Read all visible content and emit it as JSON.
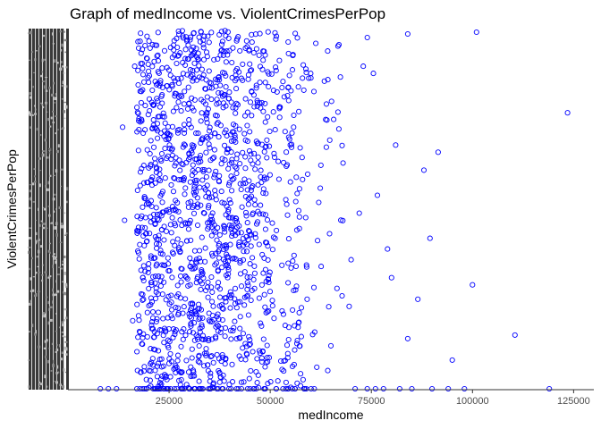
{
  "chart_data": {
    "type": "scatter",
    "title": "Graph of medIncome vs. ViolentCrimesPerPop",
    "xlabel": "medIncome",
    "ylabel": "ViolentCrimesPerPop",
    "xlim": [
      0,
      130000
    ],
    "x_ticks": [
      25000,
      50000,
      75000,
      100000,
      125000
    ],
    "x_tick_labels": [
      "25000",
      "50000",
      "75000",
      "100000",
      "125000"
    ],
    "y_axis_note": "Categorical y axis with hundreds of overlapping tick labels rendered as an illegible dark band; only '4' is individually readable.",
    "y_visible_tick_labels": [
      "4"
    ],
    "grid": false,
    "legend": "none",
    "marker": "open-circle",
    "point_color": "#0000ff",
    "axis_color": "#333333",
    "series": [
      {
        "values_note": "~1900 points; x concentrated 15000–50000, sparse tail to ~123500; y spread uniformly over the full categorical range (0–1 normalised).",
        "points": [
          [
            101000,
            0.995
          ],
          [
            84000,
            0.99
          ],
          [
            123500,
            0.77
          ],
          [
            110500,
            0.15
          ],
          [
            100000,
            0.29
          ],
          [
            91500,
            0.66
          ],
          [
            88000,
            0.61
          ],
          [
            81000,
            0.68
          ],
          [
            95000,
            0.08
          ],
          [
            89500,
            0.42
          ],
          [
            86500,
            0.25
          ],
          [
            84000,
            0.14
          ],
          [
            80000,
            0.31
          ],
          [
            79000,
            0.39
          ],
          [
            76500,
            0.54
          ],
          [
            75500,
            0.88
          ],
          [
            74000,
            0.98
          ],
          [
            73000,
            0.9
          ],
          [
            72000,
            0.49
          ],
          [
            70000,
            0.36
          ],
          [
            69500,
            0.23
          ],
          [
            68000,
            0.63
          ],
          [
            67000,
            0.96
          ],
          [
            66500,
            0.28
          ],
          [
            65000,
            0.12
          ],
          [
            64000,
            0.75
          ],
          [
            62000,
            0.52
          ],
          [
            61500,
            0.06
          ],
          [
            60000,
            0.88
          ],
          [
            59000,
            0.34
          ],
          [
            119000,
            0.0
          ],
          [
            98000,
            0.0
          ],
          [
            94000,
            0.0
          ],
          [
            90000,
            0.0
          ],
          [
            85000,
            0.0
          ],
          [
            82000,
            0.0
          ],
          [
            78000,
            0.0
          ],
          [
            76000,
            0.0
          ],
          [
            74000,
            0.0
          ],
          [
            71000,
            0.0
          ],
          [
            12000,
            0.0
          ],
          [
            10000,
            0.0
          ],
          [
            8000,
            0.0
          ],
          [
            14000,
            0.47
          ],
          [
            13500,
            0.73
          ],
          [
            16000,
            0.19
          ],
          [
            16500,
            0.9
          ]
        ]
      }
    ]
  }
}
